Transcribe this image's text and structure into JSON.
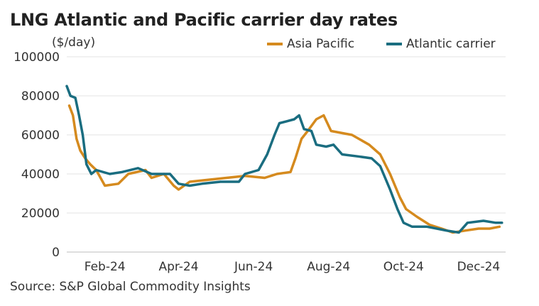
{
  "chart_data": {
    "type": "line",
    "title": "LNG Atlantic and Pacific carrier day rates",
    "unit_label": "($/day)",
    "source": "Source: S&P Global Commodity Insights",
    "ylim": [
      0,
      100000
    ],
    "yticks": [
      "100000",
      "80000",
      "60000",
      "40000",
      "20000",
      "0"
    ],
    "xticks": [
      "Feb-24",
      "Apr-24",
      "Jun-24",
      "Aug-24",
      "Oct-24",
      "Dec-24"
    ],
    "grid": true,
    "legend_position": "top-right",
    "series": [
      {
        "name": "Asia Pacific",
        "color": "#d58a1e",
        "points": [
          [
            "2024-01-03",
            75000
          ],
          [
            "2024-01-06",
            70000
          ],
          [
            "2024-01-09",
            58000
          ],
          [
            "2024-01-12",
            52000
          ],
          [
            "2024-01-16",
            48000
          ],
          [
            "2024-01-20",
            45000
          ],
          [
            "2024-01-25",
            42000
          ],
          [
            "2024-02-01",
            34000
          ],
          [
            "2024-02-12",
            35000
          ],
          [
            "2024-02-20",
            40000
          ],
          [
            "2024-03-05",
            42000
          ],
          [
            "2024-03-10",
            38000
          ],
          [
            "2024-03-20",
            40000
          ],
          [
            "2024-03-28",
            34000
          ],
          [
            "2024-04-01",
            32000
          ],
          [
            "2024-04-10",
            36000
          ],
          [
            "2024-04-25",
            37000
          ],
          [
            "2024-05-10",
            38000
          ],
          [
            "2024-05-25",
            39000
          ],
          [
            "2024-06-10",
            38000
          ],
          [
            "2024-06-20",
            40000
          ],
          [
            "2024-07-01",
            41000
          ],
          [
            "2024-07-05",
            48000
          ],
          [
            "2024-07-10",
            58000
          ],
          [
            "2024-07-15",
            62000
          ],
          [
            "2024-07-22",
            68000
          ],
          [
            "2024-07-28",
            70000
          ],
          [
            "2024-08-03",
            62000
          ],
          [
            "2024-08-20",
            60000
          ],
          [
            "2024-09-03",
            55000
          ],
          [
            "2024-09-12",
            50000
          ],
          [
            "2024-09-20",
            40000
          ],
          [
            "2024-09-28",
            28000
          ],
          [
            "2024-10-03",
            22000
          ],
          [
            "2024-10-12",
            18000
          ],
          [
            "2024-10-22",
            14000
          ],
          [
            "2024-11-01",
            12000
          ],
          [
            "2024-11-10",
            10000
          ],
          [
            "2024-11-20",
            11000
          ],
          [
            "2024-12-01",
            12000
          ],
          [
            "2024-12-10",
            12000
          ],
          [
            "2024-12-18",
            13000
          ]
        ]
      },
      {
        "name": "Atlantic carrier",
        "color": "#1a6d80",
        "points": [
          [
            "2024-01-01",
            85000
          ],
          [
            "2024-01-04",
            80000
          ],
          [
            "2024-01-08",
            79000
          ],
          [
            "2024-01-11",
            70000
          ],
          [
            "2024-01-14",
            60000
          ],
          [
            "2024-01-17",
            45000
          ],
          [
            "2024-01-21",
            40000
          ],
          [
            "2024-01-25",
            42000
          ],
          [
            "2024-02-05",
            40000
          ],
          [
            "2024-02-15",
            41000
          ],
          [
            "2024-02-28",
            43000
          ],
          [
            "2024-03-10",
            40000
          ],
          [
            "2024-03-25",
            40000
          ],
          [
            "2024-04-01",
            35000
          ],
          [
            "2024-04-10",
            34000
          ],
          [
            "2024-04-20",
            35000
          ],
          [
            "2024-05-05",
            36000
          ],
          [
            "2024-05-20",
            36000
          ],
          [
            "2024-05-25",
            40000
          ],
          [
            "2024-06-05",
            42000
          ],
          [
            "2024-06-12",
            50000
          ],
          [
            "2024-06-18",
            60000
          ],
          [
            "2024-06-22",
            66000
          ],
          [
            "2024-06-28",
            67000
          ],
          [
            "2024-07-04",
            68000
          ],
          [
            "2024-07-08",
            70000
          ],
          [
            "2024-07-12",
            63000
          ],
          [
            "2024-07-18",
            62000
          ],
          [
            "2024-07-22",
            55000
          ],
          [
            "2024-07-30",
            54000
          ],
          [
            "2024-08-05",
            55000
          ],
          [
            "2024-08-12",
            50000
          ],
          [
            "2024-08-25",
            49000
          ],
          [
            "2024-09-05",
            48000
          ],
          [
            "2024-09-12",
            44000
          ],
          [
            "2024-09-20",
            32000
          ],
          [
            "2024-09-26",
            22000
          ],
          [
            "2024-10-01",
            15000
          ],
          [
            "2024-10-08",
            13000
          ],
          [
            "2024-10-20",
            13000
          ],
          [
            "2024-10-28",
            12000
          ],
          [
            "2024-11-05",
            11000
          ],
          [
            "2024-11-15",
            10000
          ],
          [
            "2024-11-22",
            15000
          ],
          [
            "2024-12-05",
            16000
          ],
          [
            "2024-12-15",
            15000
          ],
          [
            "2024-12-20",
            15000
          ]
        ]
      }
    ]
  }
}
